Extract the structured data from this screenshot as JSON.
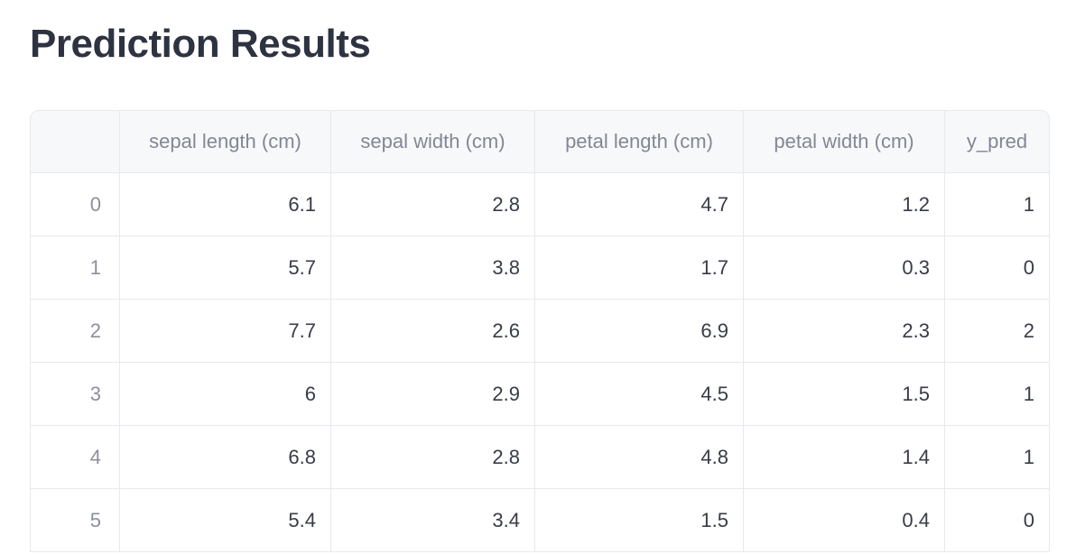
{
  "title": "Prediction Results",
  "table": {
    "index_header": "",
    "columns": [
      "sepal length (cm)",
      "sepal width (cm)",
      "petal length (cm)",
      "petal width (cm)",
      "y_pred"
    ],
    "rows": [
      {
        "index": "0",
        "cells": [
          "6.1",
          "2.8",
          "4.7",
          "1.2",
          "1"
        ]
      },
      {
        "index": "1",
        "cells": [
          "5.7",
          "3.8",
          "1.7",
          "0.3",
          "0"
        ]
      },
      {
        "index": "2",
        "cells": [
          "7.7",
          "2.6",
          "6.9",
          "2.3",
          "2"
        ]
      },
      {
        "index": "3",
        "cells": [
          "6",
          "2.9",
          "4.5",
          "1.5",
          "1"
        ]
      },
      {
        "index": "4",
        "cells": [
          "6.8",
          "2.8",
          "4.8",
          "1.4",
          "1"
        ]
      },
      {
        "index": "5",
        "cells": [
          "5.4",
          "3.4",
          "1.5",
          "0.4",
          "0"
        ]
      }
    ]
  },
  "colors": {
    "title_text": "#2e3342",
    "header_background": "#f7f8fa",
    "header_text": "#838795",
    "index_text": "#8c909d",
    "cell_text": "#383c47",
    "border": "#e7e9ee",
    "page_background": "#ffffff"
  }
}
